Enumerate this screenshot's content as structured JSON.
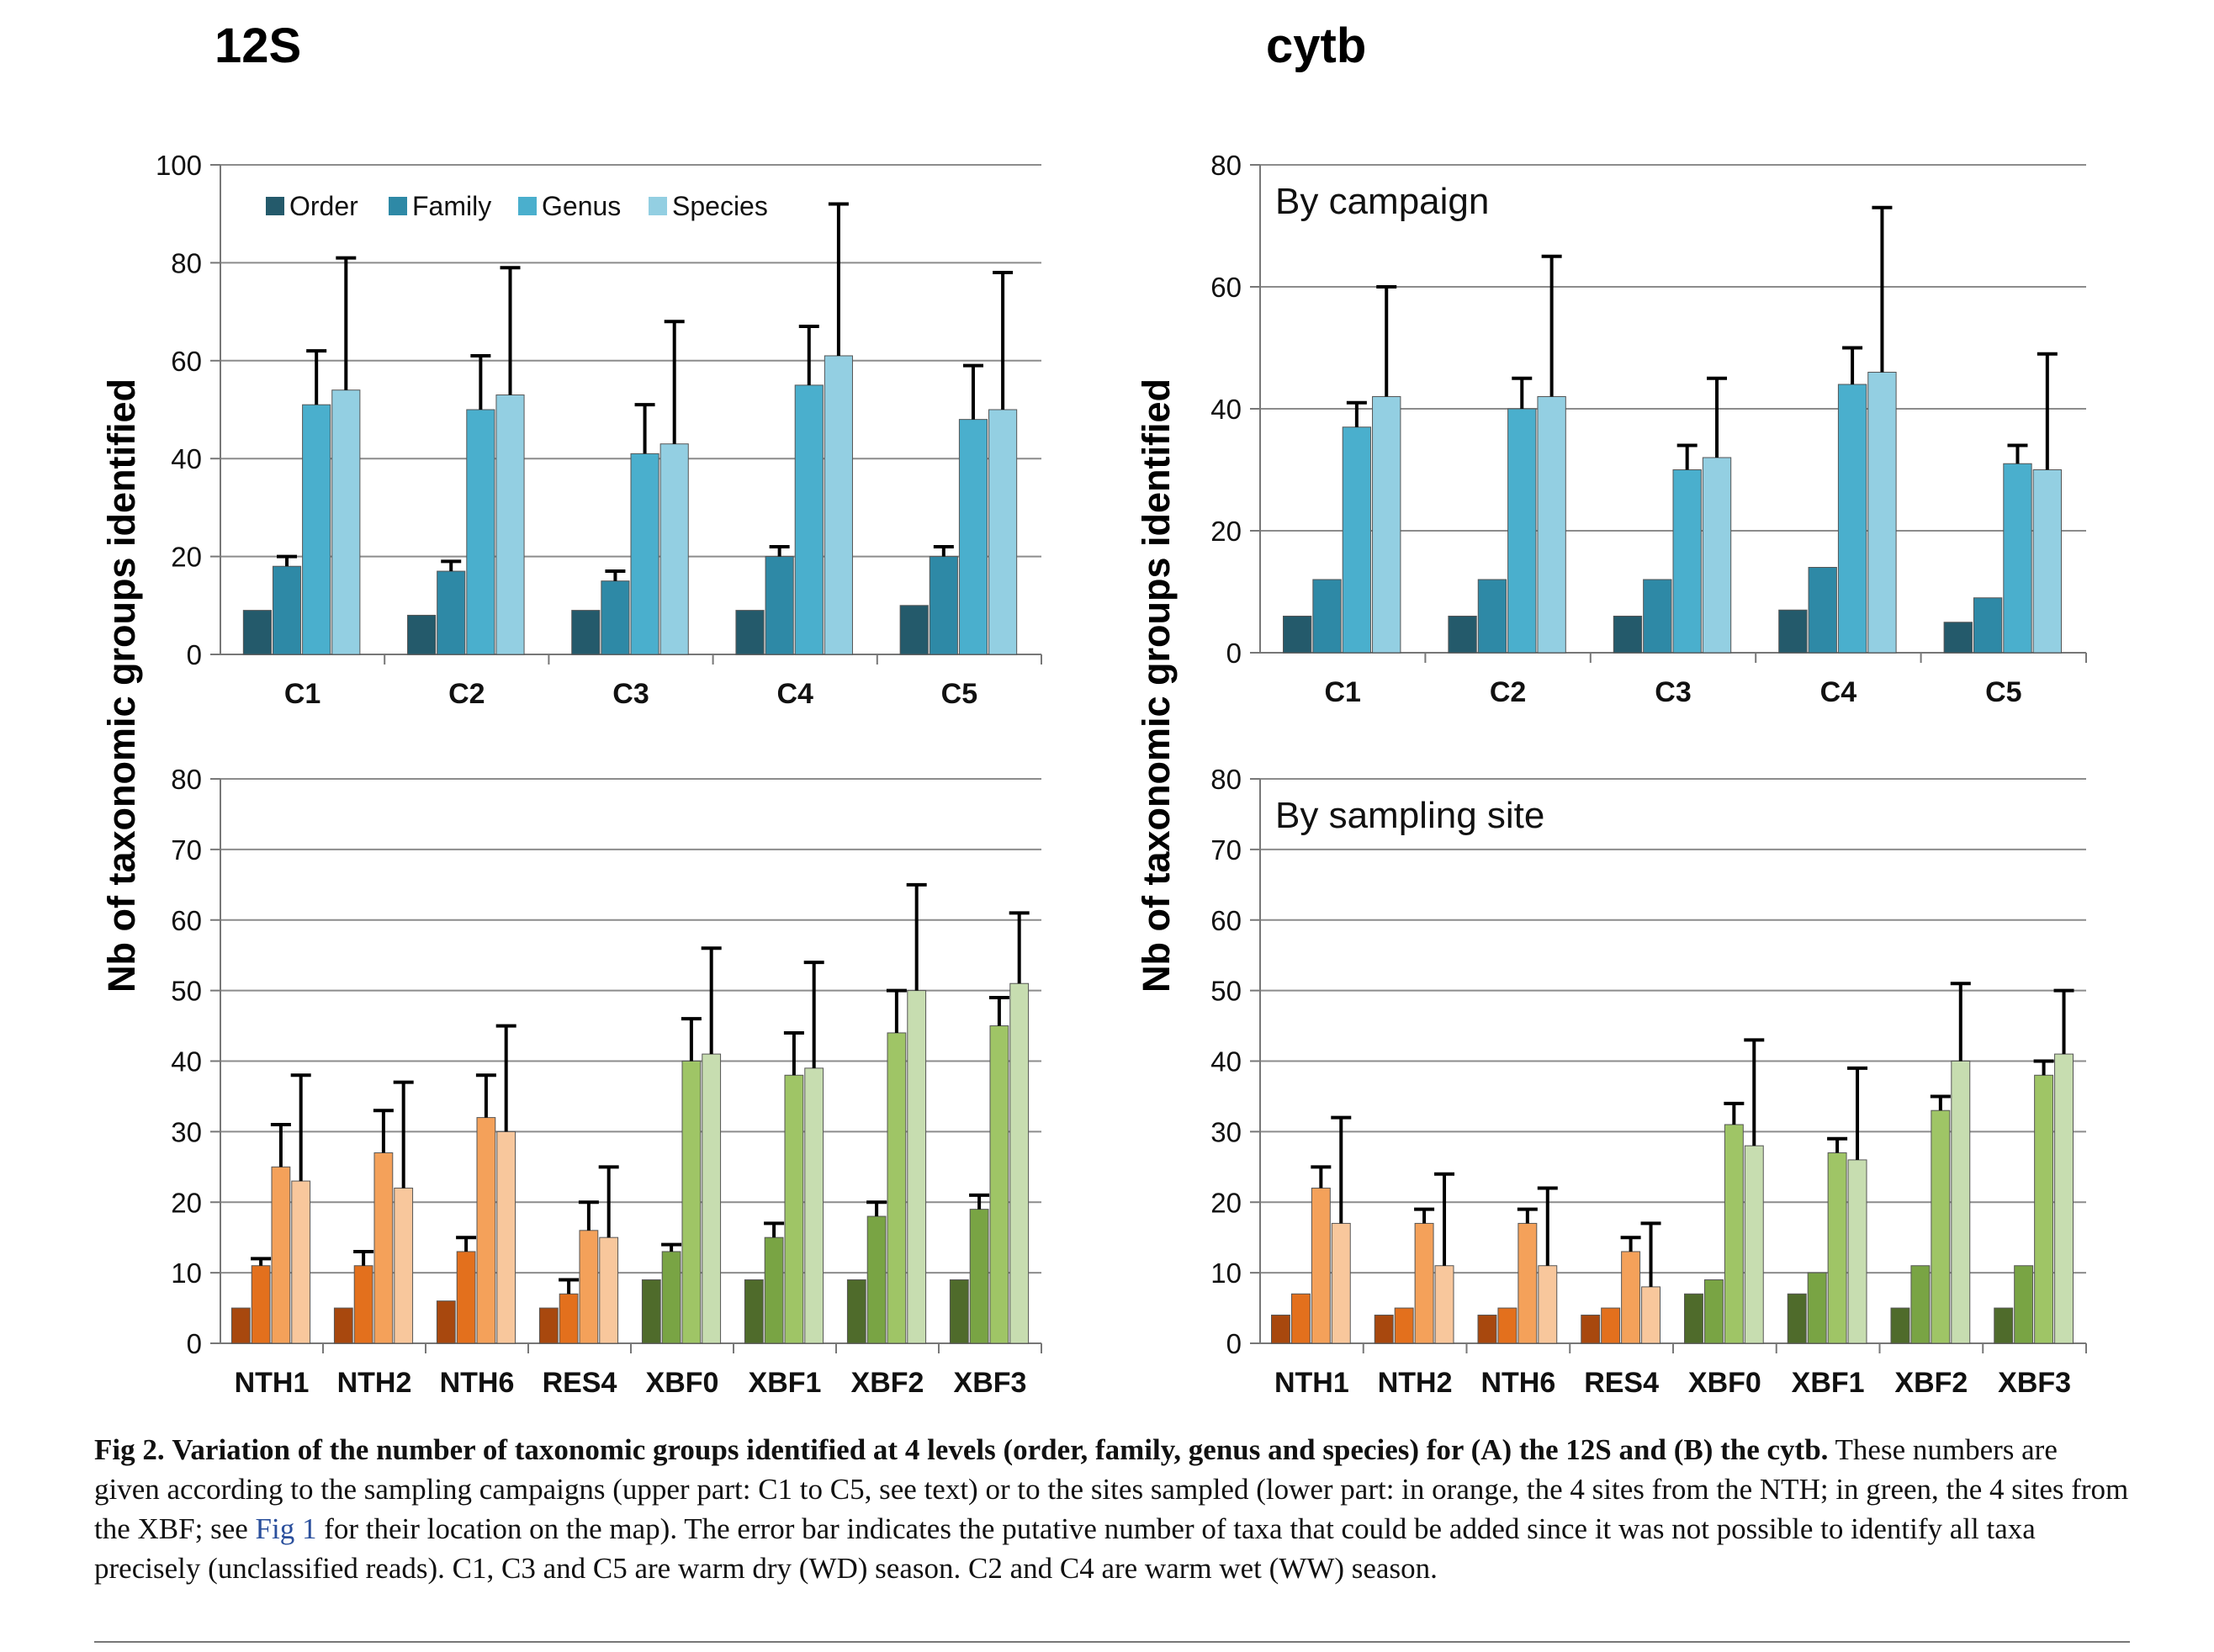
{
  "panel_titles": [
    "12S",
    "cytb"
  ],
  "y_axis_label": "Nb of taxonomic groups identified",
  "chart_data": [
    {
      "type": "bar",
      "panel": "12S",
      "part": "campaign",
      "categories": [
        "C1",
        "C2",
        "C3",
        "C4",
        "C5"
      ],
      "ylim": [
        0,
        100
      ],
      "yticks": [
        0,
        20,
        40,
        60,
        80,
        100
      ],
      "inner_label": "",
      "legend_position": "top-left",
      "series": [
        {
          "name": "Order",
          "values": [
            9,
            8,
            9,
            9,
            10
          ],
          "error": [
            9,
            8,
            9,
            9,
            10
          ],
          "color": "#245a6b"
        },
        {
          "name": "Family",
          "values": [
            18,
            17,
            15,
            20,
            20
          ],
          "error": [
            20,
            19,
            17,
            22,
            22
          ],
          "color": "#2e89a6"
        },
        {
          "name": "Genus",
          "values": [
            51,
            50,
            41,
            55,
            48
          ],
          "error": [
            62,
            61,
            51,
            67,
            59
          ],
          "color": "#4aafcd"
        },
        {
          "name": "Species",
          "values": [
            54,
            53,
            43,
            61,
            50
          ],
          "error": [
            81,
            79,
            68,
            92,
            78
          ],
          "color": "#93cfe2"
        }
      ]
    },
    {
      "type": "bar",
      "panel": "12S",
      "part": "site",
      "categories": [
        "NTH1",
        "NTH2",
        "NTH6",
        "RES4",
        "XBF0",
        "XBF1",
        "XBF2",
        "XBF3"
      ],
      "ylim": [
        0,
        80
      ],
      "yticks": [
        0,
        10,
        20,
        30,
        40,
        50,
        60,
        70,
        80
      ],
      "inner_label": "",
      "series": [
        {
          "name": "Order",
          "values": [
            5,
            5,
            6,
            5,
            9,
            9,
            9,
            9
          ],
          "error": [
            5,
            5,
            6,
            5,
            9,
            9,
            9,
            9
          ]
        },
        {
          "name": "Family",
          "values": [
            11,
            11,
            13,
            7,
            13,
            15,
            18,
            19
          ],
          "error": [
            12,
            13,
            15,
            9,
            14,
            17,
            20,
            21
          ]
        },
        {
          "name": "Genus",
          "values": [
            25,
            27,
            32,
            16,
            40,
            38,
            44,
            45
          ],
          "error": [
            31,
            33,
            38,
            20,
            46,
            44,
            50,
            49
          ]
        },
        {
          "name": "Species",
          "values": [
            23,
            22,
            30,
            15,
            41,
            39,
            50,
            51
          ],
          "error": [
            38,
            37,
            45,
            25,
            56,
            54,
            65,
            61
          ]
        }
      ]
    },
    {
      "type": "bar",
      "panel": "cytb",
      "part": "campaign",
      "categories": [
        "C1",
        "C2",
        "C3",
        "C4",
        "C5"
      ],
      "ylim": [
        0,
        80
      ],
      "yticks": [
        0,
        20,
        40,
        60,
        80
      ],
      "inner_label": "By campaign",
      "series": [
        {
          "name": "Order",
          "values": [
            6,
            6,
            6,
            7,
            5
          ],
          "error": [
            6,
            6,
            6,
            7,
            5
          ]
        },
        {
          "name": "Family",
          "values": [
            12,
            12,
            12,
            14,
            9
          ],
          "error": [
            12,
            12,
            12,
            14,
            9
          ]
        },
        {
          "name": "Genus",
          "values": [
            37,
            40,
            30,
            44,
            31
          ],
          "error": [
            41,
            45,
            34,
            50,
            34
          ]
        },
        {
          "name": "Species",
          "values": [
            42,
            42,
            32,
            46,
            30
          ],
          "error": [
            60,
            65,
            45,
            73,
            49
          ]
        }
      ]
    },
    {
      "type": "bar",
      "panel": "cytb",
      "part": "site",
      "categories": [
        "NTH1",
        "NTH2",
        "NTH6",
        "RES4",
        "XBF0",
        "XBF1",
        "XBF2",
        "XBF3"
      ],
      "ylim": [
        0,
        80
      ],
      "yticks": [
        0,
        10,
        20,
        30,
        40,
        50,
        60,
        70,
        80
      ],
      "inner_label": "By sampling site",
      "series": [
        {
          "name": "Order",
          "values": [
            4,
            4,
            4,
            4,
            7,
            7,
            5,
            5
          ],
          "error": [
            4,
            4,
            4,
            4,
            7,
            7,
            5,
            5
          ]
        },
        {
          "name": "Family",
          "values": [
            7,
            5,
            5,
            5,
            9,
            10,
            11,
            11
          ],
          "error": [
            7,
            5,
            5,
            5,
            9,
            10,
            11,
            11
          ]
        },
        {
          "name": "Genus",
          "values": [
            22,
            17,
            17,
            13,
            31,
            27,
            33,
            38
          ],
          "error": [
            25,
            19,
            19,
            15,
            34,
            29,
            35,
            40
          ]
        },
        {
          "name": "Species",
          "values": [
            17,
            11,
            11,
            8,
            28,
            26,
            40,
            41
          ],
          "error": [
            32,
            24,
            22,
            17,
            43,
            39,
            51,
            50
          ]
        }
      ]
    }
  ],
  "site_colors": {
    "orange": [
      "#a8480e",
      "#e3701d",
      "#f4a15a",
      "#f8c79c"
    ],
    "green": [
      "#4f6b2b",
      "#79a444",
      "#9fc566",
      "#c7ddb0"
    ]
  },
  "caption": {
    "fig_label": "Fig 2.",
    "bold_text": "Variation of the number of taxonomic groups identified at 4 levels (order, family, genus and species) for (A) the 12S and (B) the cytb.",
    "text_before_link": "These numbers are given according to the sampling campaigns (upper part: C1 to C5, see text) or to the sites sampled (lower part: in orange, the 4 sites from the NTH; in green, the 4 sites from the XBF; see",
    "link_text": "Fig 1",
    "text_after_link": "for their location on the map). The error bar indicates the putative number of taxa that could be added since it was not possible to identify all taxa precisely (unclassified reads). C1, C3 and C5 are warm dry (WD) season. C2 and C4 are warm wet (WW) season."
  }
}
